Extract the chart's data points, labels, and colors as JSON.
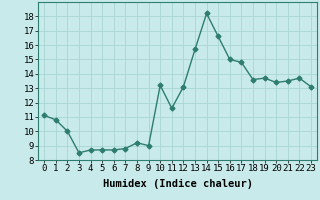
{
  "x": [
    0,
    1,
    2,
    3,
    4,
    5,
    6,
    7,
    8,
    9,
    10,
    11,
    12,
    13,
    14,
    15,
    16,
    17,
    18,
    19,
    20,
    21,
    22,
    23
  ],
  "y": [
    11.1,
    10.8,
    10.0,
    8.5,
    8.7,
    8.7,
    8.7,
    8.8,
    9.2,
    9.0,
    13.2,
    11.6,
    13.1,
    15.7,
    18.2,
    16.6,
    15.0,
    14.8,
    13.6,
    13.7,
    13.4,
    13.5,
    13.7,
    13.1
  ],
  "line_color": "#2e7d6e",
  "bg_color": "#c8eaea",
  "grid_color": "#aad4d4",
  "xlabel": "Humidex (Indice chaleur)",
  "ylim": [
    8,
    19
  ],
  "xlim": [
    -0.5,
    23.5
  ],
  "yticks": [
    8,
    9,
    10,
    11,
    12,
    13,
    14,
    15,
    16,
    17,
    18
  ],
  "xticks": [
    0,
    1,
    2,
    3,
    4,
    5,
    6,
    7,
    8,
    9,
    10,
    11,
    12,
    13,
    14,
    15,
    16,
    17,
    18,
    19,
    20,
    21,
    22,
    23
  ],
  "xlabel_fontsize": 7.5,
  "tick_fontsize": 6.5,
  "marker_size": 2.5,
  "line_width": 1.0
}
